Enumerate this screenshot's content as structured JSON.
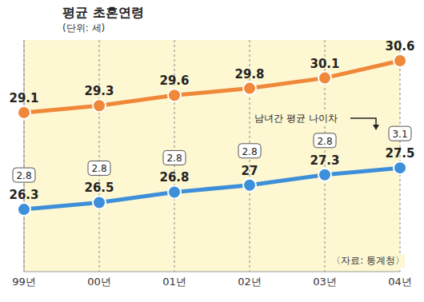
{
  "chart_data": {
    "type": "line",
    "title": "평균 초혼연령",
    "subtitle": "(단위: 세)",
    "categories": [
      "99년",
      "00년",
      "01년",
      "02년",
      "03년",
      "04년"
    ],
    "series": [
      {
        "color": "#f0883a",
        "values": [
          29.1,
          29.3,
          29.6,
          29.8,
          30.1,
          30.6
        ]
      },
      {
        "color": "#3c8fd8",
        "values": [
          26.3,
          26.5,
          26.8,
          27,
          27.3,
          27.5
        ]
      }
    ],
    "age_gap": {
      "label": "남녀간 평균 나이차",
      "values": [
        2.8,
        2.8,
        2.8,
        2.8,
        2.8,
        3.1
      ]
    },
    "source": "〈자료: 통계청〉",
    "ylim": [
      24.5,
      31.2
    ],
    "yticks": [],
    "grid": true,
    "data_labels": true,
    "tick_labels": "x",
    "marker": "circle"
  }
}
